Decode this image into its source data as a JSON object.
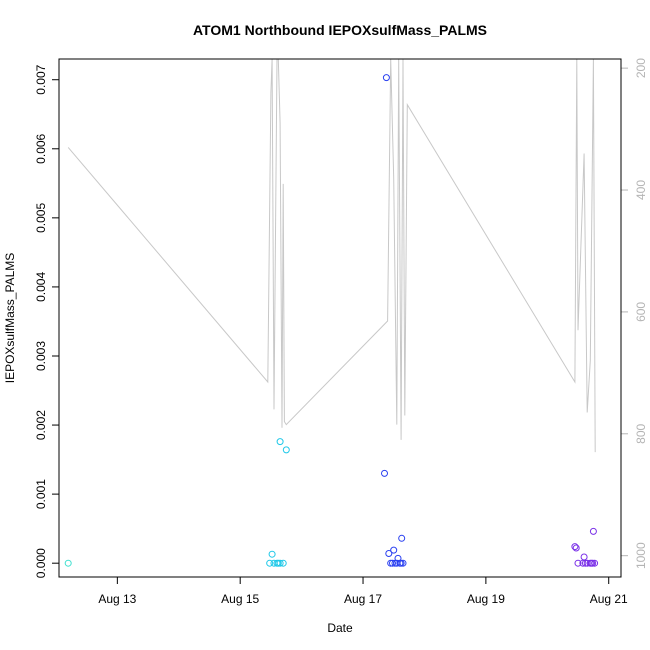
{
  "chart_data": {
    "type": "scatter",
    "title": "ATOM1 Northbound IEPOXsulfMass_PALMS",
    "xlabel": "Date",
    "ylabel": "IEPOXsulfMass_PALMS",
    "x_ticks": [
      {
        "day": 13,
        "label": "Aug 13"
      },
      {
        "day": 15,
        "label": "Aug 15"
      },
      {
        "day": 17,
        "label": "Aug 17"
      },
      {
        "day": 19,
        "label": "Aug 19"
      },
      {
        "day": 21,
        "label": "Aug 21"
      }
    ],
    "xlim": [
      12.05,
      21.2
    ],
    "ylim": [
      -0.0002,
      0.0073
    ],
    "y_ticks": [
      "0.000",
      "0.001",
      "0.002",
      "0.003",
      "0.004",
      "0.005",
      "0.006",
      "0.007"
    ],
    "y_tick_values": [
      0,
      0.001,
      0.002,
      0.003,
      0.004,
      0.005,
      0.006,
      0.007
    ],
    "y2_ticks": [
      "200",
      "400",
      "600",
      "800",
      "1000"
    ],
    "y2_tick_values": [
      200,
      400,
      600,
      800,
      1000
    ],
    "y2lim": [
      1035,
      185
    ],
    "grid": false,
    "legend": "none",
    "colors": {
      "point_early": "#40e0d0",
      "point_aug15": "#1ec8e8",
      "point_aug17": "#2a40f0",
      "point_aug20": "#7a30e8",
      "pressure_line": "#c8c8c8",
      "axis": "#000000",
      "axis_right": "#b4b4b4"
    },
    "pressure_line": [
      [
        12.2,
        330
      ],
      [
        15.45,
        715
      ],
      [
        15.5,
        240
      ],
      [
        15.52,
        185
      ],
      [
        15.55,
        760
      ],
      [
        15.6,
        185
      ],
      [
        15.62,
        185
      ],
      [
        15.65,
        290
      ],
      [
        15.68,
        790
      ],
      [
        15.7,
        390
      ],
      [
        15.72,
        780
      ],
      [
        15.75,
        785
      ],
      [
        17.4,
        615
      ],
      [
        17.45,
        185
      ],
      [
        17.5,
        380
      ],
      [
        17.55,
        785
      ],
      [
        17.58,
        185
      ],
      [
        17.62,
        810
      ],
      [
        17.65,
        185
      ],
      [
        17.68,
        770
      ],
      [
        17.72,
        260
      ],
      [
        20.45,
        715
      ],
      [
        20.48,
        185
      ],
      [
        20.5,
        630
      ],
      [
        20.6,
        340
      ],
      [
        20.65,
        765
      ],
      [
        20.7,
        680
      ],
      [
        20.75,
        185
      ],
      [
        20.78,
        830
      ]
    ],
    "series": [
      {
        "color": "point_early",
        "points": [
          [
            12.2,
            0.0
          ]
        ]
      },
      {
        "color": "point_aug15",
        "points": [
          [
            15.48,
            0.0
          ],
          [
            15.52,
            0.00013
          ],
          [
            15.55,
            0.0
          ],
          [
            15.6,
            0.0
          ],
          [
            15.62,
            0.0
          ],
          [
            15.65,
            0.0
          ],
          [
            15.7,
            0.0
          ],
          [
            15.65,
            0.00176
          ],
          [
            15.75,
            0.00164
          ]
        ]
      },
      {
        "color": "point_aug17",
        "points": [
          [
            17.38,
            0.00703
          ],
          [
            17.35,
            0.0013
          ],
          [
            17.42,
            0.00014
          ],
          [
            17.45,
            0.0
          ],
          [
            17.48,
            0.0
          ],
          [
            17.5,
            0.00019
          ],
          [
            17.52,
            0.0
          ],
          [
            17.55,
            0.0
          ],
          [
            17.57,
            7e-05
          ],
          [
            17.6,
            0.0
          ],
          [
            17.62,
            0.0
          ],
          [
            17.63,
            0.00036
          ],
          [
            17.65,
            0.0
          ]
        ]
      },
      {
        "color": "point_aug20",
        "points": [
          [
            20.45,
            0.00024
          ],
          [
            20.47,
            0.00022
          ],
          [
            20.5,
            0.0
          ],
          [
            20.58,
            0.0
          ],
          [
            20.6,
            9e-05
          ],
          [
            20.62,
            0.0
          ],
          [
            20.65,
            0.0
          ],
          [
            20.7,
            0.0
          ],
          [
            20.72,
            0.0
          ],
          [
            20.74,
            0.0
          ],
          [
            20.75,
            0.00046
          ],
          [
            20.77,
            0.0
          ]
        ]
      }
    ]
  }
}
